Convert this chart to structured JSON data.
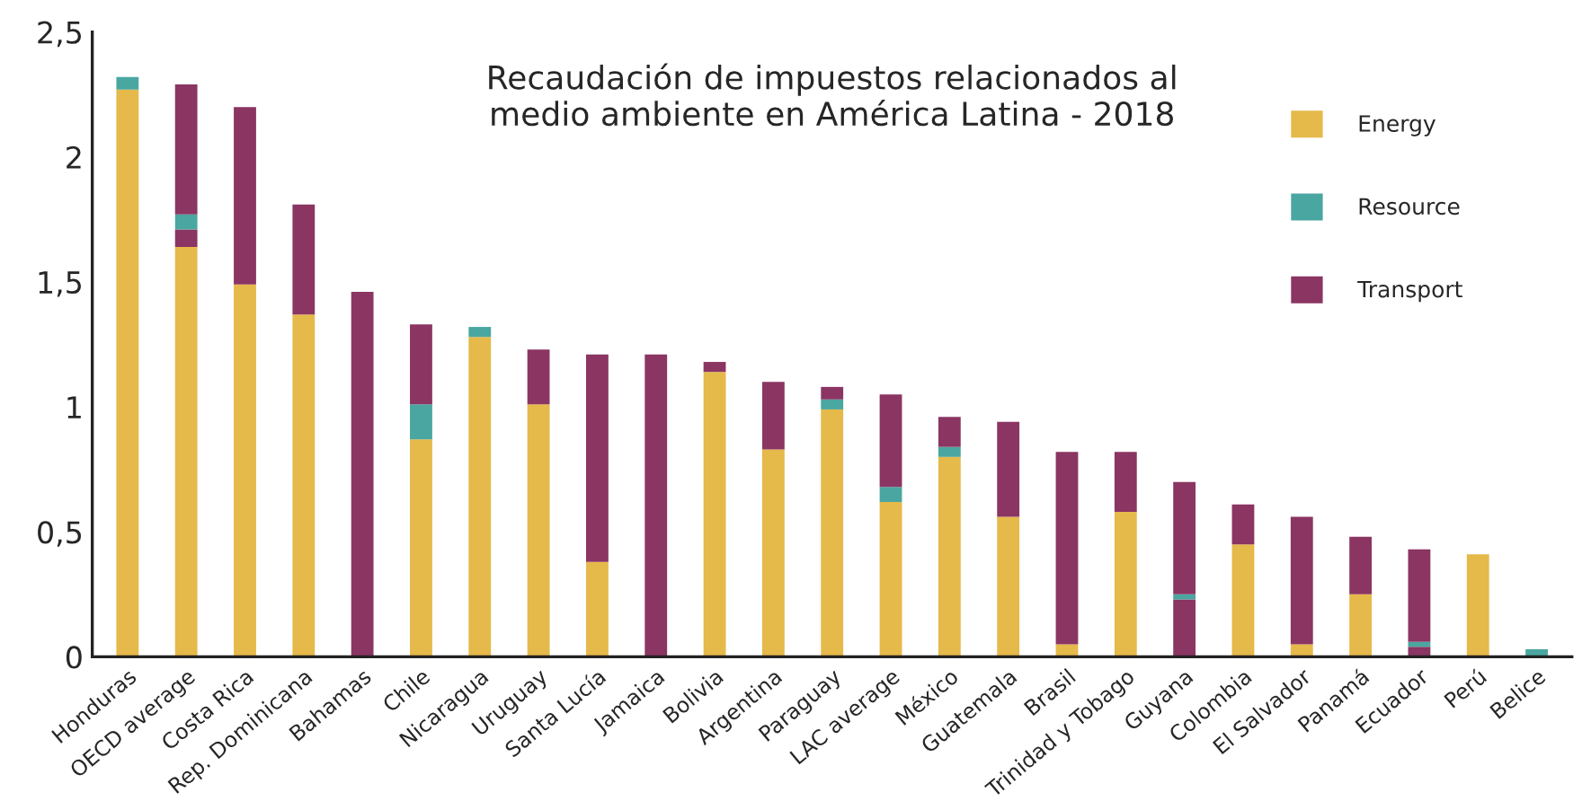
{
  "chart_data": {
    "type": "bar",
    "title": "Recaudación de impuestos relacionados al\nmedio ambiente en América Latina - 2018",
    "categories": [
      "Honduras",
      "OECD average",
      "Costa Rica",
      "Rep. Dominicana",
      "Bahamas",
      "Chile",
      "Nicaragua",
      "Uruguay",
      "Santa Lucía",
      "Jamaica",
      "Bolivia",
      "Argentina",
      "Paraguay",
      "LAC average",
      "México",
      "Guatemala",
      "Brasil",
      "Trinidad y Tobago",
      "Guyana",
      "Colombia",
      "El Salvador",
      "Panamá",
      "Ecuador",
      "Perú",
      "Belice"
    ],
    "stacked": true,
    "series": [
      {
        "name": "Energy",
        "color": "#e5b94a",
        "values": [
          2.27,
          1.64,
          1.49,
          1.37,
          null,
          0.87,
          1.28,
          1.01,
          0.38,
          null,
          1.14,
          0.83,
          0.99,
          0.62,
          0.8,
          0.56,
          0.05,
          0.58,
          null,
          0.45,
          0.05,
          0.25,
          null,
          0.41,
          null
        ]
      },
      {
        "color": "#8b3563",
        "values": [
          null,
          0.07,
          null,
          null,
          null,
          null,
          null,
          null,
          null,
          null,
          null,
          null,
          null,
          null,
          null,
          null,
          null,
          null,
          0.23,
          null,
          null,
          null,
          0.04,
          null,
          null
        ]
      },
      {
        "name": "Resource",
        "color": "#4aa6a0",
        "values": [
          0.05,
          0.06,
          null,
          null,
          null,
          0.14,
          0.04,
          null,
          null,
          null,
          null,
          null,
          0.04,
          0.06,
          0.04,
          null,
          null,
          null,
          0.02,
          null,
          null,
          null,
          0.02,
          null,
          0.03
        ]
      },
      {
        "name": "Transport",
        "color": "#8b3563",
        "values": [
          null,
          0.52,
          0.71,
          0.44,
          1.46,
          0.32,
          null,
          0.22,
          0.83,
          1.21,
          0.04,
          0.27,
          0.05,
          0.37,
          0.12,
          0.38,
          0.77,
          0.24,
          0.45,
          0.16,
          0.51,
          0.23,
          0.37,
          null,
          null
        ]
      }
    ],
    "ylim": [
      0,
      2.5
    ],
    "yticks": [
      0,
      {
        "value": 0.5,
        "label": "0,5"
      },
      1,
      {
        "value": 1.5,
        "label": "1,5"
      },
      2,
      {
        "value": 2.5,
        "label": "2,5"
      }
    ],
    "grid": false,
    "legend": "right"
  }
}
